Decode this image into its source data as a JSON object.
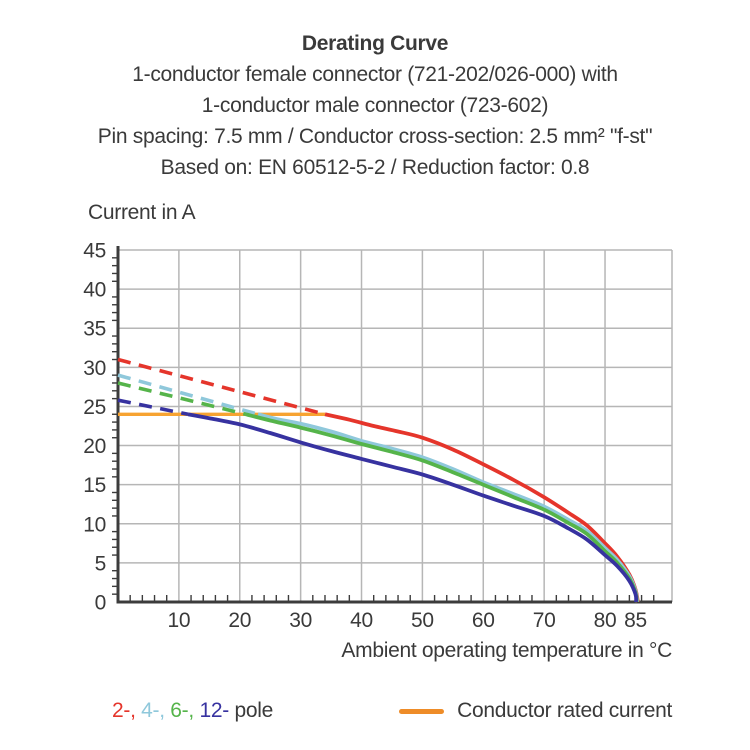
{
  "header": {
    "title": "Derating Curve",
    "line2": "1-conductor female connector (721-202/026-000) with",
    "line3": "1-conductor male connector (723-602)",
    "line4": "Pin spacing: 7.5 mm / Conductor cross-section: 2.5 mm² \"f-st\"",
    "line5": "Based on: EN 60512-5-2 / Reduction factor: 0.8"
  },
  "chart_data": {
    "type": "line",
    "title": "Derating Curve",
    "ylabel": "Current in A",
    "xlabel": "Ambient operating temperature in °C",
    "xlim": [
      0,
      91
    ],
    "ylim": [
      0,
      45
    ],
    "x_tick_labels": [
      10,
      20,
      30,
      40,
      50,
      60,
      70,
      80,
      85
    ],
    "y_tick_labels": [
      0,
      5,
      10,
      15,
      20,
      25,
      30,
      35,
      40,
      45
    ],
    "x_gridlines": [
      10,
      20,
      30,
      40,
      50,
      60,
      70,
      80
    ],
    "y_gridlines": [
      5,
      10,
      15,
      20,
      25,
      30,
      35,
      40,
      45
    ],
    "x_minor_tick_step": 2,
    "y_minor_tick_step": 1,
    "grid_color": "#b6b6b6",
    "axis_color": "#3c3c3c",
    "text_color": "#3a3a3a",
    "series": [
      {
        "name": "Conductor rated current",
        "color": "#f7a331",
        "dashed": false,
        "width": 3.4,
        "points": [
          [
            0,
            24
          ],
          [
            34,
            24
          ]
        ]
      },
      {
        "name": "2-pole above rated (dashed)",
        "color": "#e5352b",
        "dashed": true,
        "width": 3.6,
        "points": [
          [
            0,
            31
          ],
          [
            34,
            24
          ]
        ]
      },
      {
        "name": "4-pole above rated (dashed)",
        "color": "#8fc8db",
        "dashed": true,
        "width": 3.6,
        "points": [
          [
            0,
            29
          ],
          [
            23,
            24
          ]
        ]
      },
      {
        "name": "6-pole above rated (dashed)",
        "color": "#55b44a",
        "dashed": true,
        "width": 3.6,
        "points": [
          [
            0,
            28
          ],
          [
            21,
            24
          ]
        ]
      },
      {
        "name": "12-pole above rated (dashed)",
        "color": "#3732a0",
        "dashed": true,
        "width": 3.6,
        "points": [
          [
            0,
            25.8
          ],
          [
            11.5,
            24
          ]
        ]
      },
      {
        "name": "2-pole",
        "color": "#e5352b",
        "dashed": false,
        "width": 3.8,
        "points": [
          [
            34,
            24
          ],
          [
            38,
            23.3
          ],
          [
            42,
            22.5
          ],
          [
            46,
            21.8
          ],
          [
            50,
            21
          ],
          [
            55,
            19.5
          ],
          [
            60,
            17.6
          ],
          [
            65,
            15.6
          ],
          [
            70,
            13.4
          ],
          [
            74,
            11.4
          ],
          [
            77,
            9.8
          ],
          [
            80,
            7.5
          ],
          [
            82,
            5.8
          ],
          [
            84,
            3.5
          ],
          [
            85,
            1.6
          ],
          [
            85.4,
            0
          ]
        ]
      },
      {
        "name": "4-pole",
        "color": "#8fc8db",
        "dashed": false,
        "width": 3.8,
        "points": [
          [
            23,
            24
          ],
          [
            26,
            23.4
          ],
          [
            30,
            22.8
          ],
          [
            35,
            21.8
          ],
          [
            40,
            20.6
          ],
          [
            45,
            19.6
          ],
          [
            50,
            18.5
          ],
          [
            55,
            17
          ],
          [
            60,
            15.3
          ],
          [
            65,
            13.8
          ],
          [
            70,
            12.2
          ],
          [
            74,
            10.5
          ],
          [
            77,
            9.1
          ],
          [
            80,
            6.9
          ],
          [
            82,
            5.4
          ],
          [
            84,
            3.3
          ],
          [
            85,
            1.4
          ],
          [
            85.3,
            0
          ]
        ]
      },
      {
        "name": "6-pole",
        "color": "#55b44a",
        "dashed": false,
        "width": 3.8,
        "points": [
          [
            21,
            24
          ],
          [
            25,
            23.2
          ],
          [
            30,
            22.3
          ],
          [
            35,
            21.3
          ],
          [
            40,
            20.2
          ],
          [
            45,
            19.2
          ],
          [
            50,
            18.1
          ],
          [
            55,
            16.6
          ],
          [
            60,
            15
          ],
          [
            65,
            13.4
          ],
          [
            70,
            11.8
          ],
          [
            74,
            10.1
          ],
          [
            77,
            8.7
          ],
          [
            80,
            6.5
          ],
          [
            82,
            5
          ],
          [
            84,
            3
          ],
          [
            85,
            1.2
          ],
          [
            85.2,
            0
          ]
        ]
      },
      {
        "name": "12-pole",
        "color": "#3732a0",
        "dashed": false,
        "width": 3.8,
        "points": [
          [
            11.5,
            24
          ],
          [
            15,
            23.5
          ],
          [
            20,
            22.7
          ],
          [
            25,
            21.6
          ],
          [
            30,
            20.4
          ],
          [
            35,
            19.3
          ],
          [
            40,
            18.3
          ],
          [
            45,
            17.3
          ],
          [
            50,
            16.3
          ],
          [
            55,
            15
          ],
          [
            60,
            13.6
          ],
          [
            65,
            12.3
          ],
          [
            70,
            11
          ],
          [
            74,
            9.4
          ],
          [
            77,
            8
          ],
          [
            80,
            6
          ],
          [
            82,
            4.6
          ],
          [
            84,
            2.7
          ],
          [
            85,
            1
          ],
          [
            85.1,
            0
          ]
        ]
      }
    ]
  },
  "legend": {
    "pole_segments": [
      {
        "text": "2-,",
        "color": "#e5352b"
      },
      {
        "text": " 4-,",
        "color": "#8fc8db"
      },
      {
        "text": " 6-,",
        "color": "#55b44a"
      },
      {
        "text": " 12-",
        "color": "#3732a0"
      },
      {
        "text": " pole",
        "color": "#3a3a3a"
      }
    ],
    "rated": {
      "label": "Conductor rated current",
      "swatch_color": "#ee8c28"
    }
  }
}
